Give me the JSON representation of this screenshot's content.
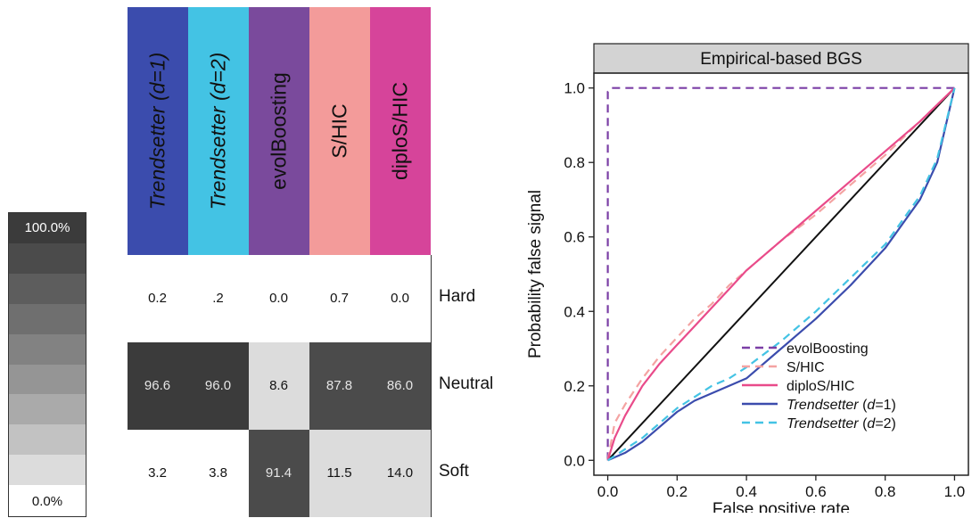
{
  "color_scale": {
    "max_label": "100.0%",
    "min_label": "0.0%",
    "steps": [
      "#3b3b3b",
      "#4b4b4b",
      "#5d5d5d",
      "#6f6f6f",
      "#828282",
      "#959595",
      "#aaaaaa",
      "#c2c2c2",
      "#dcdcdc",
      "#ffffff"
    ]
  },
  "matrix": {
    "methods": [
      {
        "label": "Trendsetter (d=1)",
        "color": "#3b4cad"
      },
      {
        "label": "Trendsetter (d=2)",
        "color": "#43c3e4"
      },
      {
        "label": "evolBoosting",
        "color": "#7a4a9c"
      },
      {
        "label": "S/HIC",
        "color": "#f39b9a"
      },
      {
        "label": "diploS/HIC",
        "color": "#d6449a"
      }
    ],
    "rows": [
      "Hard",
      "Neutral",
      "Soft"
    ],
    "values": [
      [
        "0.2",
        ".2",
        "0.0",
        "0.7",
        "0.0"
      ],
      [
        "96.6",
        "96.0",
        "8.6",
        "87.8",
        "86.0"
      ],
      [
        "3.2",
        "3.8",
        "91.4",
        "11.5",
        "14.0"
      ]
    ]
  },
  "chart_data": {
    "type": "line",
    "title": "Empirical-based BGS",
    "xlabel": "False positive rate",
    "ylabel": "Probability false signal",
    "xlim": [
      -0.04,
      1.04
    ],
    "ylim": [
      -0.04,
      1.04
    ],
    "xticks": [
      0.0,
      0.2,
      0.4,
      0.6,
      0.8,
      1.0
    ],
    "yticks": [
      0.0,
      0.2,
      0.4,
      0.6,
      0.8,
      1.0
    ],
    "xtick_labels": [
      "0.0",
      "0.2",
      "0.4",
      "0.6",
      "0.8",
      "1.0"
    ],
    "ytick_labels": [
      "0.0",
      "0.2",
      "0.4",
      "0.6",
      "0.8",
      "1.0"
    ],
    "grid": false,
    "legend_position": "lower-right",
    "reference_line": {
      "x": [
        0,
        1
      ],
      "y": [
        0,
        1
      ],
      "color": "#111111"
    },
    "series": [
      {
        "name": "evolBoosting",
        "color": "#7b3fa6",
        "dash": "dashed",
        "x": [
          0.0,
          0.0,
          0.01,
          1.0
        ],
        "y": [
          0.0,
          0.99,
          1.0,
          1.0
        ]
      },
      {
        "name": "S/HIC",
        "color": "#f4a3a2",
        "dash": "dashed",
        "x": [
          0.0,
          0.02,
          0.05,
          0.1,
          0.15,
          0.2,
          0.25,
          0.3,
          0.35,
          0.4,
          0.5,
          0.6,
          0.7,
          0.8,
          0.9,
          1.0
        ],
        "y": [
          0.0,
          0.1,
          0.15,
          0.22,
          0.28,
          0.33,
          0.38,
          0.42,
          0.47,
          0.51,
          0.59,
          0.66,
          0.74,
          0.82,
          0.91,
          1.0
        ]
      },
      {
        "name": "diploS/HIC",
        "color": "#e94b8a",
        "dash": "solid",
        "x": [
          0.0,
          0.02,
          0.05,
          0.1,
          0.15,
          0.2,
          0.25,
          0.3,
          0.35,
          0.4,
          0.5,
          0.6,
          0.7,
          0.8,
          0.9,
          1.0
        ],
        "y": [
          0.0,
          0.06,
          0.12,
          0.2,
          0.26,
          0.31,
          0.36,
          0.41,
          0.46,
          0.51,
          0.59,
          0.67,
          0.75,
          0.83,
          0.91,
          1.0
        ]
      },
      {
        "name": "Trendsetter (d=1)",
        "color": "#3b4cad",
        "dash": "solid",
        "x": [
          0.0,
          0.05,
          0.1,
          0.15,
          0.2,
          0.25,
          0.3,
          0.35,
          0.4,
          0.5,
          0.6,
          0.7,
          0.8,
          0.9,
          0.95,
          1.0
        ],
        "y": [
          0.0,
          0.02,
          0.05,
          0.09,
          0.13,
          0.16,
          0.18,
          0.2,
          0.22,
          0.3,
          0.38,
          0.47,
          0.57,
          0.7,
          0.8,
          1.0
        ]
      },
      {
        "name": "Trendsetter (d=2)",
        "color": "#43c3e4",
        "dash": "dashed",
        "x": [
          0.0,
          0.05,
          0.1,
          0.15,
          0.2,
          0.25,
          0.3,
          0.35,
          0.4,
          0.5,
          0.6,
          0.7,
          0.8,
          0.9,
          0.95,
          1.0
        ],
        "y": [
          0.0,
          0.03,
          0.06,
          0.1,
          0.14,
          0.17,
          0.2,
          0.22,
          0.25,
          0.32,
          0.4,
          0.49,
          0.58,
          0.71,
          0.81,
          1.0
        ]
      }
    ]
  }
}
